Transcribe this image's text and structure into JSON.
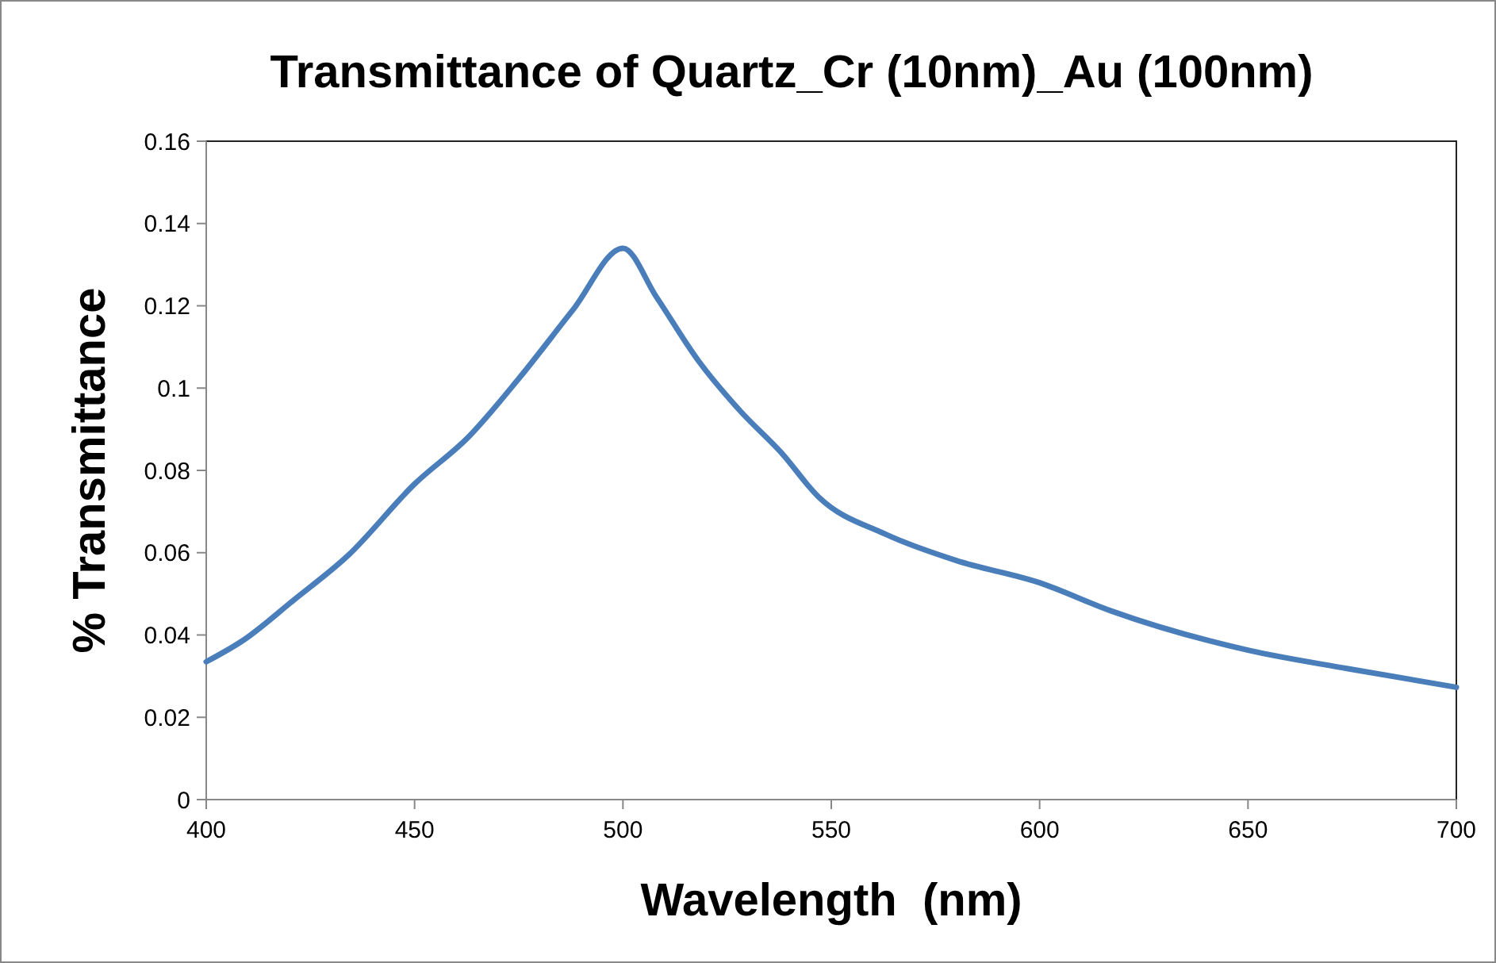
{
  "chart_data": {
    "type": "line",
    "title": "Transmittance of Quartz_Cr (10nm)_Au (100nm)",
    "xlabel": "Wavelength  (nm)",
    "ylabel": "% Transmittance",
    "x": [
      400,
      409,
      421,
      434,
      450,
      463,
      475,
      488,
      500,
      508,
      518,
      528,
      538,
      547,
      563,
      580,
      600,
      617,
      650,
      674,
      700
    ],
    "series": [
      {
        "color": "#4a7ebb",
        "values": [
          0.0335,
          0.0388,
          0.0485,
          0.0593,
          0.0767,
          0.0882,
          0.1023,
          0.119,
          0.134,
          0.1222,
          0.1068,
          0.0946,
          0.0843,
          0.0735,
          0.0645,
          0.0581,
          0.0527,
          0.0459,
          0.0363,
          0.0318,
          0.0273
        ]
      }
    ],
    "xlim": [
      400,
      700
    ],
    "xticks": [
      400,
      450,
      500,
      550,
      600,
      650,
      700
    ],
    "ylim": [
      0,
      0.16
    ],
    "yticks": [
      0,
      0.02,
      0.04,
      0.06,
      0.08,
      0.1,
      0.12,
      0.14,
      0.16
    ],
    "grid": false
  }
}
